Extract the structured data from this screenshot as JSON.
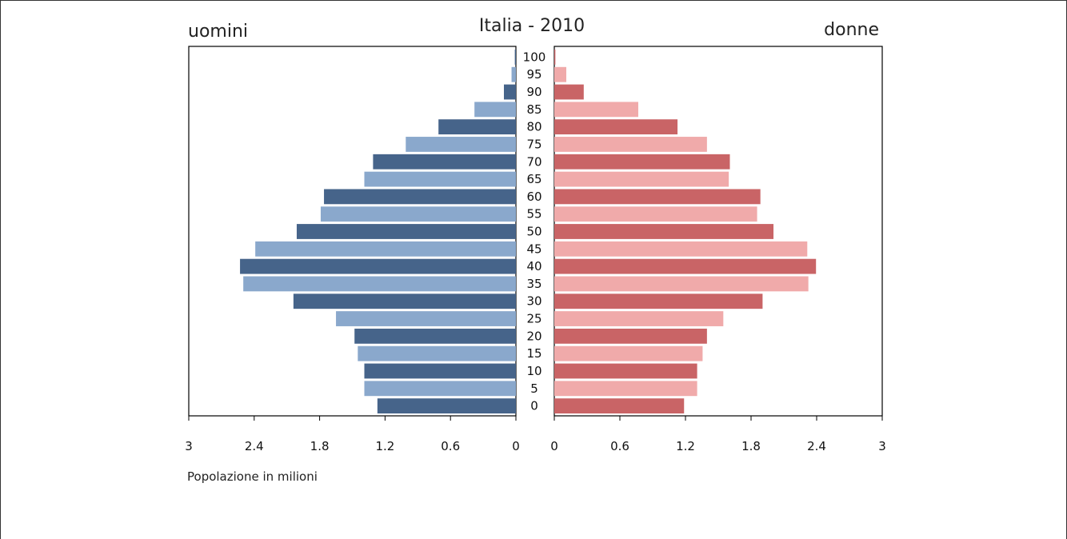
{
  "chart_data": {
    "type": "bar",
    "title": "Italia - 2010",
    "left_label": "uomini",
    "right_label": "donne",
    "xlabel": "Popolazione in milioni",
    "xlim": [
      0,
      3
    ],
    "x_ticks": [
      "3",
      "2.4",
      "1.8",
      "1.2",
      "0.6",
      "0"
    ],
    "x_ticks_right": [
      "0",
      "0.6",
      "1.2",
      "1.8",
      "2.4",
      "3"
    ],
    "tick_values": [
      0,
      0.6,
      1.2,
      1.8,
      2.4,
      3
    ],
    "categories": [
      "100",
      "95",
      "90",
      "85",
      "80",
      "75",
      "70",
      "65",
      "60",
      "55",
      "50",
      "45",
      "40",
      "35",
      "30",
      "25",
      "20",
      "15",
      "10",
      "5",
      "0"
    ],
    "series": [
      {
        "side": "left",
        "color_dark": "#46648a",
        "color_light": "#8aa8cc",
        "values": [
          0.01,
          0.04,
          0.11,
          0.38,
          0.71,
          1.01,
          1.31,
          1.39,
          1.76,
          1.79,
          2.01,
          2.39,
          2.53,
          2.5,
          2.04,
          1.65,
          1.48,
          1.45,
          1.39,
          1.39,
          1.27
        ]
      },
      {
        "side": "right",
        "color_dark": "#c96466",
        "color_light": "#f0aaaa",
        "values": [
          0.01,
          0.11,
          0.27,
          0.77,
          1.13,
          1.4,
          1.61,
          1.6,
          1.89,
          1.86,
          2.01,
          2.32,
          2.4,
          2.33,
          1.91,
          1.55,
          1.4,
          1.36,
          1.31,
          1.31,
          1.19
        ]
      }
    ],
    "grid": false
  }
}
